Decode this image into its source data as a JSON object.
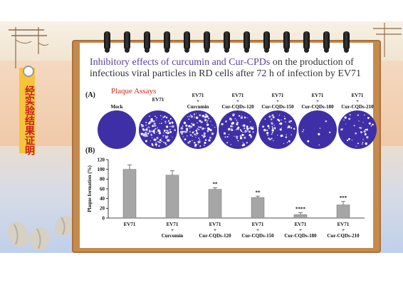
{
  "title_parts": {
    "highlight": "Inhibitory effects of curcumin and Cur-CPDs",
    "rest_line1": " on the production of",
    "line2": "infectious viral particles in RD cells after 72 h of infection by EV71"
  },
  "panel_a_label": "(A)",
  "panel_b_label": "(B)",
  "plaque_assays_label": "Plaque Assays",
  "side_tag_text": "经实验结果证明",
  "dishes": [
    {
      "label": "Mock",
      "plaque_density": 0
    },
    {
      "label": "EV71",
      "plaque_density": 0.9
    },
    {
      "label": "EV71\n+\nCurcumin",
      "plaque_density": 0.75
    },
    {
      "label": "EV71\n+\nCur-CQDs-120",
      "plaque_density": 0.55
    },
    {
      "label": "EV71\n+\nCur-CQDs-150",
      "plaque_density": 0.4
    },
    {
      "label": "EV71\n+\nCur-CQDs-180",
      "plaque_density": 0.06
    },
    {
      "label": "EV71\n+\nCur-CQDs-210",
      "plaque_density": 0.25
    }
  ],
  "colors": {
    "dish_purple": "#3e2fa6",
    "bar_gray": "#a6a6a6",
    "title_highlight": "#5a3f9e",
    "plaque_label_red": "#d2261c",
    "side_tag_yellow": "#f7c33a",
    "frame_wood": "#c68a4c"
  },
  "chart_data": {
    "type": "bar",
    "ylabel": "Plaque formation (%)",
    "ylim": [
      0,
      120
    ],
    "yticks": [
      0,
      20,
      40,
      60,
      80,
      100,
      120
    ],
    "categories": [
      "EV71",
      "EV71\n+\nCurcumin",
      "EV71\n+\nCur-CQDs-120",
      "EV71\n+\nCur-CQDs-150",
      "EV71\n+\nCur-CQDs-180",
      "EV71\n+\nCur-CQDs-210"
    ],
    "values": [
      100,
      88,
      59,
      42,
      7,
      27
    ],
    "errors": [
      9,
      9,
      3,
      3,
      4,
      7
    ],
    "significance": [
      "",
      "",
      "**",
      "**",
      "****",
      "***"
    ]
  }
}
